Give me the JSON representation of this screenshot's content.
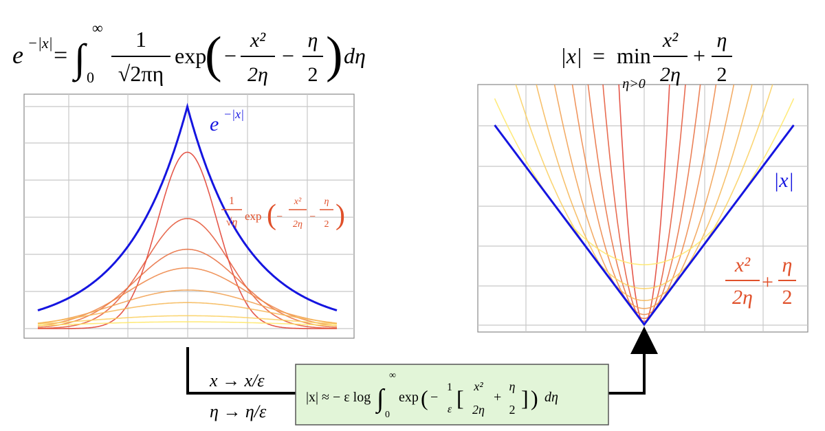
{
  "left_formula": [
    "e",
    "−|x|",
    "=",
    "∫",
    "∞",
    "0",
    "1",
    "√2πη",
    "exp",
    "(",
    "−",
    "x²",
    "2η",
    "−",
    "η",
    "2",
    ")",
    "dη"
  ],
  "right_formula": [
    "|x|",
    "=",
    "min",
    "η>0",
    "x²",
    "2η",
    "+",
    "η",
    "2"
  ],
  "left_plot": {
    "curve_label": [
      "e",
      "−|x|"
    ],
    "integrand_label": [
      "1",
      "√η",
      "exp",
      "(",
      "−",
      "x²",
      "2η",
      "−",
      "η",
      "2",
      ")"
    ],
    "eta": [
      0.25,
      0.5,
      0.75,
      1,
      1.5,
      2,
      3,
      4
    ],
    "scale": 0.45
  },
  "right_plot": {
    "curve_label": [
      "|x|"
    ],
    "parabola_label": [
      "x²",
      "2η",
      "+",
      "η",
      "2"
    ],
    "eta": [
      0.03,
      0.08,
      0.15,
      0.25,
      0.4,
      0.6,
      0.9,
      1.5
    ]
  },
  "substitution": [
    "x → x/ε",
    "η → η/ε"
  ],
  "box_formula": [
    "|x| ≈ − ε log",
    "∫",
    "∞",
    "0",
    "exp",
    "(",
    "−",
    "1",
    "ε",
    "[",
    "x²",
    "2η",
    "+",
    "η",
    "2",
    "]",
    ")",
    "dη"
  ]
}
